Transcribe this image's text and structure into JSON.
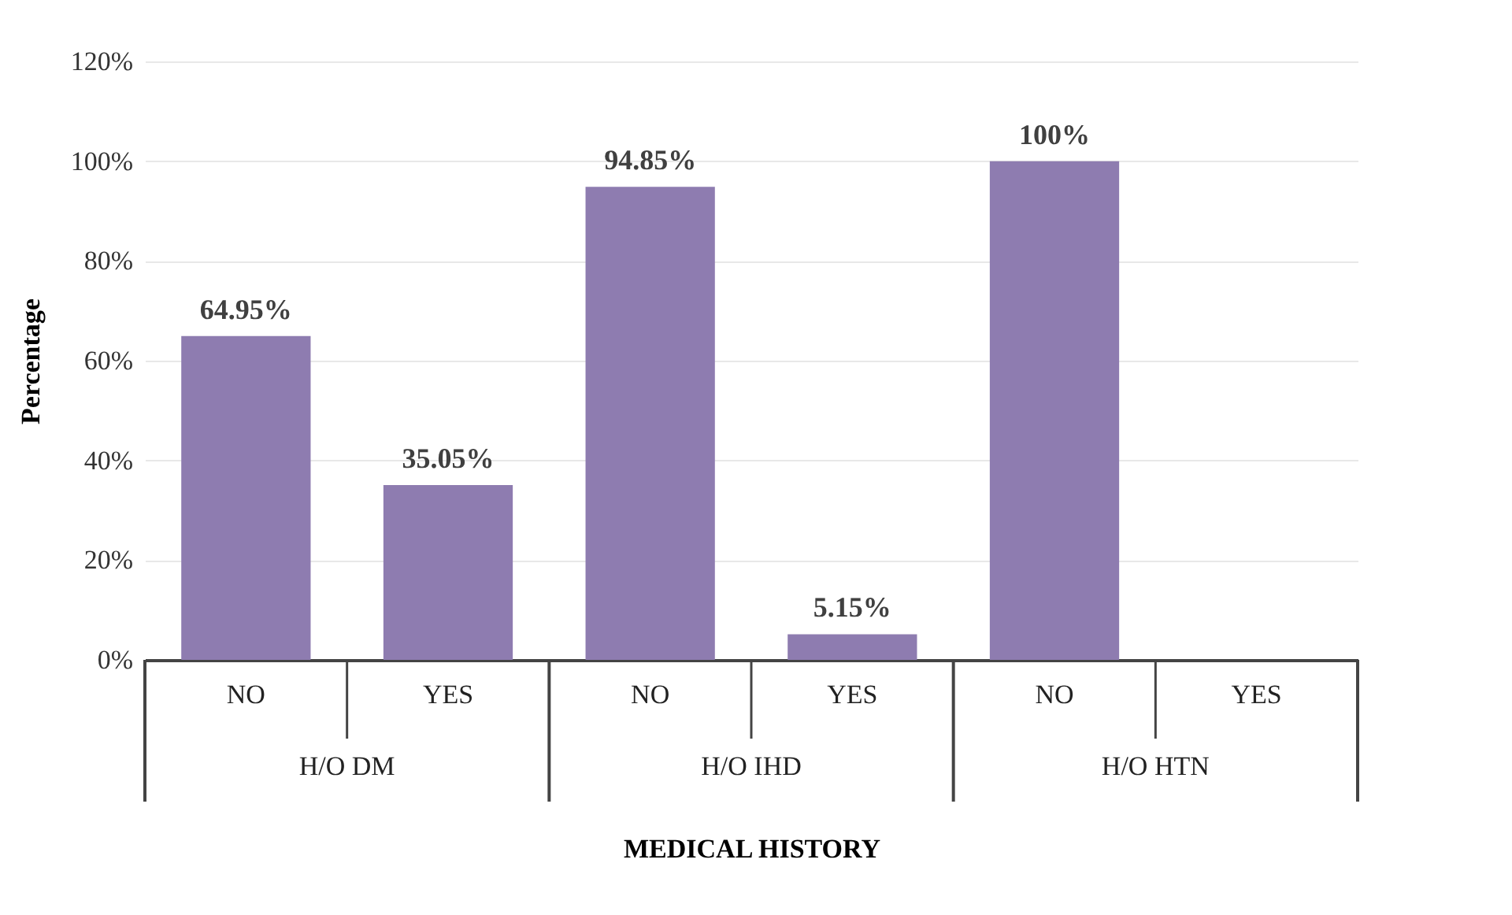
{
  "chart_data": {
    "type": "bar",
    "xlabel": "MEDICAL HISTORY",
    "ylabel": "Percentage",
    "categories": [
      "NO",
      "YES",
      "NO",
      "YES",
      "NO",
      "YES"
    ],
    "values": [
      64.95,
      35.05,
      94.85,
      5.15,
      100,
      0
    ],
    "value_labels": [
      "64.95%",
      "35.05%",
      "94.85%",
      "5.15%",
      "100%",
      null
    ],
    "color": "#8e7cb0",
    "ylim": [
      0,
      120
    ],
    "yticks": [
      {
        "value": 0,
        "label": "0%"
      },
      {
        "value": 20,
        "label": "20%"
      },
      {
        "value": 40,
        "label": "40%"
      },
      {
        "value": 60,
        "label": "60%"
      },
      {
        "value": 80,
        "label": "80%"
      },
      {
        "value": 100,
        "label": "100%"
      },
      {
        "value": 120,
        "label": "120%"
      }
    ],
    "grid": "y",
    "annotations": [
      "H/O DM",
      "H/O IHD",
      "H/O HTN"
    ]
  }
}
